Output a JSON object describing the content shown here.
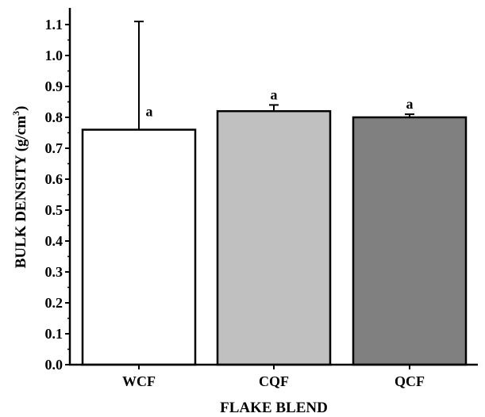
{
  "chart_data": {
    "type": "bar",
    "categories": [
      "WCF",
      "CQF",
      "QCF"
    ],
    "values": [
      0.76,
      0.82,
      0.8
    ],
    "error_upper": [
      1.11,
      0.84,
      0.81
    ],
    "significance_labels": [
      "a",
      "a",
      "a"
    ],
    "bar_colors": [
      "#ffffff",
      "#c0c0c0",
      "#808080"
    ],
    "xlabel": "FLAKE BLEND",
    "ylabel": "BULK DENSITY (g/cm",
    "ylabel_superscript": "3",
    "ylabel_suffix": ")",
    "ylim": [
      0,
      1.15
    ],
    "yticks": [
      "0.0",
      "0.1",
      "0.2",
      "0.3",
      "0.4",
      "0.5",
      "0.6",
      "0.7",
      "0.8",
      "0.9",
      "1.0",
      "1.1"
    ],
    "grid": false
  }
}
